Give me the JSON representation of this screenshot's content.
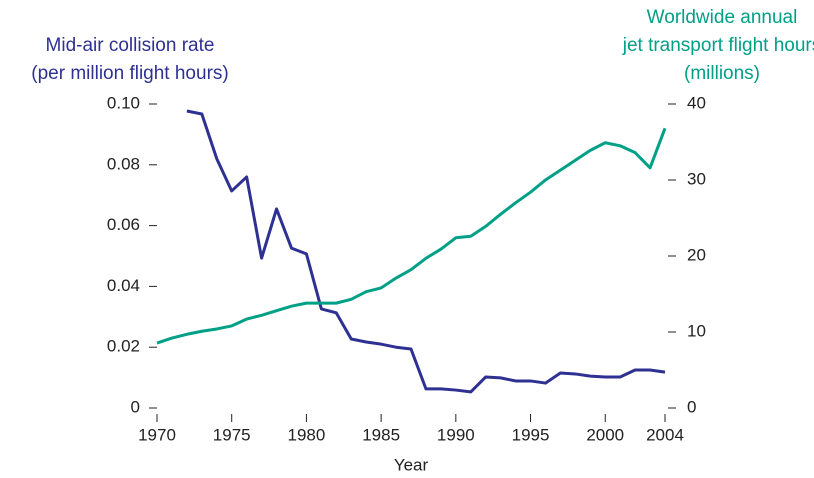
{
  "chart_data": {
    "type": "line",
    "xlabel": "Year",
    "ylabel": [
      "Mid-air collision rate",
      "(per million flight hours)"
    ],
    "y2label": [
      "Worldwide annual",
      "jet transport flight hours",
      "(millions)"
    ],
    "x": [
      1970,
      1971,
      1972,
      1973,
      1974,
      1975,
      1976,
      1977,
      1978,
      1979,
      1980,
      1981,
      1982,
      1983,
      1984,
      1985,
      1986,
      1987,
      1988,
      1989,
      1990,
      1991,
      1992,
      1993,
      1994,
      1995,
      1996,
      1997,
      1998,
      1999,
      2000,
      2001,
      2002,
      2003,
      2004
    ],
    "xlim": [
      1970,
      2004
    ],
    "xticks": [
      1970,
      1975,
      1980,
      1985,
      1990,
      1995,
      2000,
      2004
    ],
    "ylim": [
      0,
      0.1
    ],
    "yticks": [
      0,
      0.02,
      0.04,
      0.06,
      0.08,
      {
        "value": 0.1,
        "label": "0.10"
      }
    ],
    "y2lim": [
      0,
      40
    ],
    "y2ticks": [
      0,
      10,
      20,
      30,
      40
    ],
    "series": [
      {
        "color": "#2e3192",
        "values": [
          null,
          null,
          0.0977,
          0.0967,
          0.082,
          0.0714,
          0.076,
          0.0493,
          0.0655,
          0.0526,
          0.0507,
          0.0326,
          0.0313,
          0.0227,
          0.0217,
          0.021,
          0.02,
          0.0194,
          0.0063,
          0.0063,
          0.0059,
          0.0053,
          0.0102,
          0.0099,
          0.0089,
          0.0089,
          0.0082,
          0.0115,
          0.0112,
          0.0105,
          0.0102,
          0.0102,
          0.0125,
          0.0125,
          0.0118
        ]
      },
      {
        "color": "#00a087",
        "axis": "y2",
        "values": [
          8.55,
          9.2,
          9.7,
          10.1,
          10.4,
          10.8,
          11.7,
          12.2,
          12.8,
          13.4,
          13.8,
          13.8,
          13.8,
          14.3,
          15.3,
          15.8,
          17.1,
          18.2,
          19.7,
          20.9,
          22.4,
          22.6,
          23.9,
          25.5,
          27.0,
          28.4,
          30.0,
          31.3,
          32.6,
          33.9,
          34.9,
          34.5,
          33.6,
          31.6,
          36.8
        ]
      }
    ]
  }
}
